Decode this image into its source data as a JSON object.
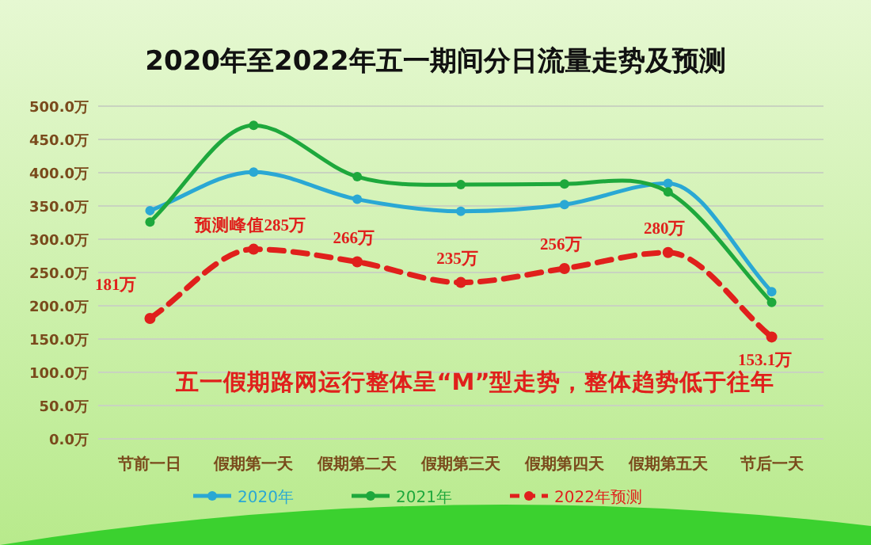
{
  "chart_data": {
    "type": "line",
    "title": "2020年至2022年五一期间分日流量走势及预测",
    "categories": [
      "节前一日",
      "假期第一天",
      "假期第二天",
      "假期第三天",
      "假期第四天",
      "假期第五天",
      "节后一天"
    ],
    "series": [
      {
        "name": "2020年",
        "color": "#2aa8d4",
        "values": [
          343,
          401,
          360,
          342,
          352,
          384,
          221
        ],
        "line_style": "solid"
      },
      {
        "name": "2021年",
        "color": "#1ea83c",
        "values": [
          326,
          471,
          394,
          382,
          383,
          371,
          205
        ],
        "line_style": "solid"
      },
      {
        "name": "2022年预测",
        "color": "#e0201c",
        "values": [
          181,
          285,
          266,
          235,
          256,
          280,
          153.1
        ],
        "line_style": "dashed",
        "value_labels": [
          "181万",
          "预测峰值285万",
          "266万",
          "235万",
          "256万",
          "280万",
          "153.1万"
        ]
      }
    ],
    "ylim": [
      0,
      500
    ],
    "yticks": [
      {
        "value": 0,
        "label": "0.0万"
      },
      {
        "value": 50,
        "label": "50.0万"
      },
      {
        "value": 100,
        "label": "100.0万"
      },
      {
        "value": 150,
        "label": "150.0万"
      },
      {
        "value": 200,
        "label": "200.0万"
      },
      {
        "value": 250,
        "label": "250.0万"
      },
      {
        "value": 300,
        "label": "300.0万"
      },
      {
        "value": 350,
        "label": "350.0万"
      },
      {
        "value": 400,
        "label": "400.0万"
      },
      {
        "value": 450,
        "label": "450.0万"
      },
      {
        "value": 500,
        "label": "500.0万"
      }
    ],
    "annotations": [
      "五一假期路网运行整体呈“M”型走势，整体趋势低于往年"
    ],
    "grid": "y",
    "legend": "bottom",
    "marker": "circle"
  }
}
